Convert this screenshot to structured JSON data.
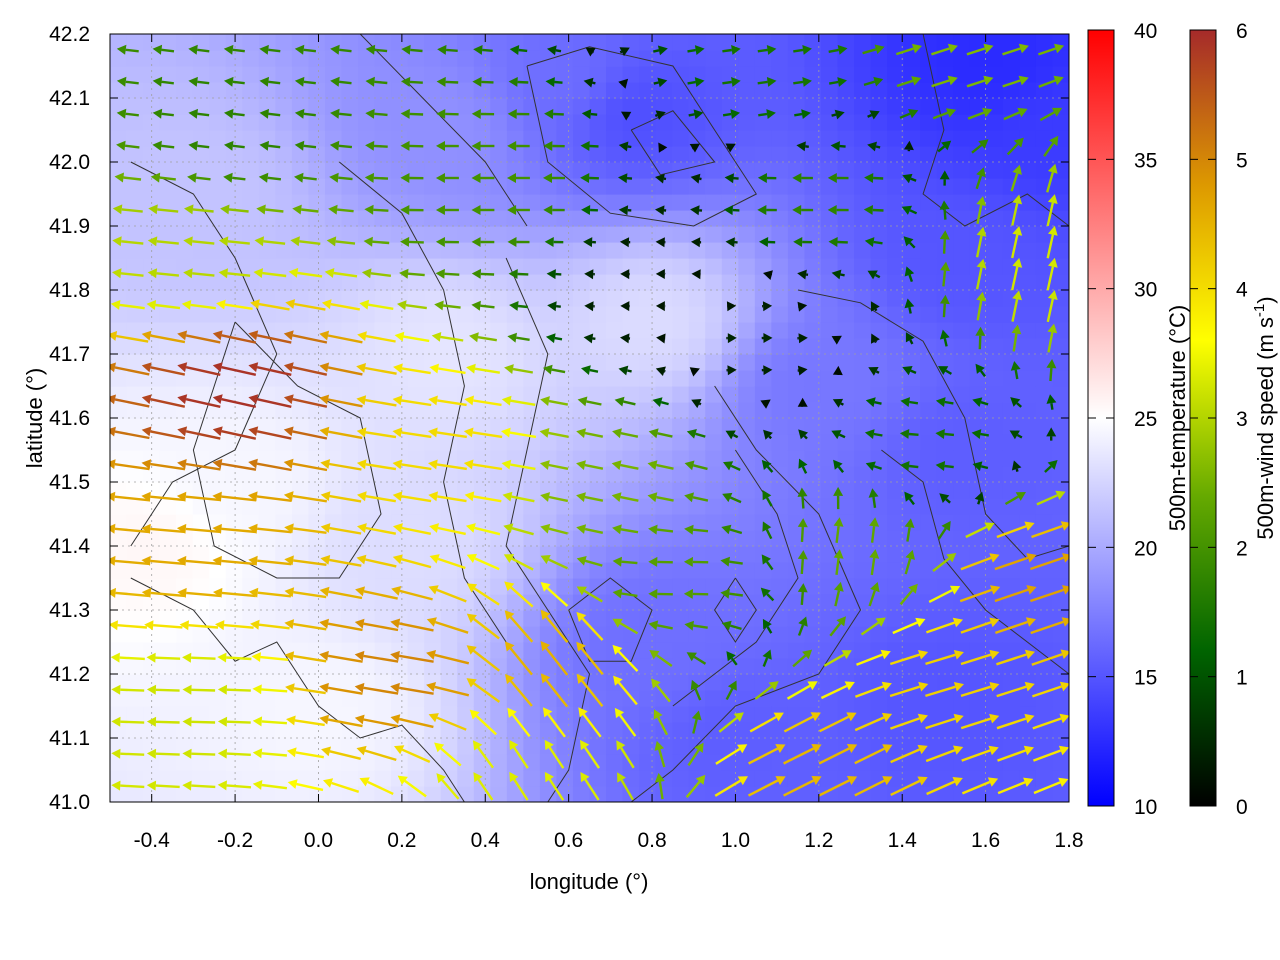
{
  "chart_data": {
    "type": "heatmap",
    "title": "",
    "xlabel": "longitude (°)",
    "ylabel": "latitude (°)",
    "xlim": [
      -0.5,
      1.8
    ],
    "ylim": [
      41.0,
      42.2
    ],
    "x_ticks": [
      {
        "value": -0.4,
        "label": "-0.4"
      },
      {
        "value": -0.2,
        "label": "-0.2"
      },
      {
        "value": 0.0,
        "label": "0.0"
      },
      {
        "value": 0.2,
        "label": "0.2"
      },
      {
        "value": 0.4,
        "label": "0.4"
      },
      {
        "value": 0.6,
        "label": "0.6"
      },
      {
        "value": 0.8,
        "label": "0.8"
      },
      {
        "value": 1.0,
        "label": "1.0"
      },
      {
        "value": 1.2,
        "label": "1.2"
      },
      {
        "value": 1.4,
        "label": "1.4"
      },
      {
        "value": 1.6,
        "label": "1.6"
      },
      {
        "value": 1.8,
        "label": "1.8"
      }
    ],
    "y_ticks": [
      {
        "value": 41.0,
        "label": "41.0"
      },
      {
        "value": 41.1,
        "label": "41.1"
      },
      {
        "value": 41.2,
        "label": "41.2"
      },
      {
        "value": 41.3,
        "label": "41.3"
      },
      {
        "value": 41.4,
        "label": "41.4"
      },
      {
        "value": 41.5,
        "label": "41.5"
      },
      {
        "value": 41.6,
        "label": "41.6"
      },
      {
        "value": 41.7,
        "label": "41.7"
      },
      {
        "value": 41.8,
        "label": "41.8"
      },
      {
        "value": 41.9,
        "label": "41.9"
      },
      {
        "value": 42.0,
        "label": "42.0"
      },
      {
        "value": 42.1,
        "label": "42.1"
      },
      {
        "value": 42.2,
        "label": "42.2"
      }
    ],
    "grid": true,
    "temperature_colorbar": {
      "label": "500m-temperature (°C)",
      "range": [
        10,
        40
      ],
      "ticks": [
        {
          "value": 10,
          "label": "10"
        },
        {
          "value": 15,
          "label": "15"
        },
        {
          "value": 20,
          "label": "20"
        },
        {
          "value": 25,
          "label": "25"
        },
        {
          "value": 30,
          "label": "30"
        },
        {
          "value": 35,
          "label": "35"
        },
        {
          "value": 40,
          "label": "40"
        }
      ],
      "colors": [
        "#0000ff",
        "#ffffff",
        "#ff0000"
      ]
    },
    "windspeed_colorbar": {
      "label": "500m-wind speed (m s",
      "label_superscript": "-1",
      "label_close": ")",
      "range": [
        0,
        6
      ],
      "ticks": [
        {
          "value": 0,
          "label": "0"
        },
        {
          "value": 1,
          "label": "1"
        },
        {
          "value": 2,
          "label": "2"
        },
        {
          "value": 3,
          "label": "3"
        },
        {
          "value": 4,
          "label": "4"
        },
        {
          "value": 5,
          "label": "5"
        },
        {
          "value": 6,
          "label": "6"
        }
      ],
      "colors": [
        "#000000",
        "#006400",
        "#66aa00",
        "#ffff00",
        "#dd9900",
        "#a52a2a"
      ]
    },
    "temperature_regions": [
      {
        "lon": 1.62,
        "lat": 42.15,
        "temp": 12.5
      },
      {
        "lon": 1.75,
        "lat": 42.05,
        "temp": 13.5
      },
      {
        "lon": 1.55,
        "lat": 41.85,
        "temp": 15.0
      },
      {
        "lon": 1.55,
        "lat": 41.55,
        "temp": 15.5
      },
      {
        "lon": 1.5,
        "lat": 41.15,
        "temp": 15.0
      },
      {
        "lon": 1.0,
        "lat": 41.1,
        "temp": 15.5
      },
      {
        "lon": 0.8,
        "lat": 41.25,
        "temp": 16.5
      },
      {
        "lon": 0.75,
        "lat": 42.08,
        "temp": 14.5
      },
      {
        "lon": 0.6,
        "lat": 42.12,
        "temp": 16.5
      },
      {
        "lon": 0.3,
        "lat": 42.05,
        "temp": 18.5
      },
      {
        "lon": 0.8,
        "lat": 41.75,
        "temp": 23.0
      },
      {
        "lon": 0.3,
        "lat": 41.7,
        "temp": 23.5
      },
      {
        "lon": -0.2,
        "lat": 41.5,
        "temp": 24.5
      },
      {
        "lon": -0.4,
        "lat": 41.4,
        "temp": 25.5
      },
      {
        "lon": 0.0,
        "lat": 41.15,
        "temp": 24.5
      },
      {
        "lon": -0.3,
        "lat": 41.95,
        "temp": 21.5
      },
      {
        "lon": 0.2,
        "lat": 41.4,
        "temp": 23.0
      },
      {
        "lon": 1.2,
        "lat": 41.65,
        "temp": 17.0
      }
    ],
    "wind_regions": [
      {
        "lon": -0.2,
        "lat": 42.05,
        "u": -1.7,
        "v": 0.2
      },
      {
        "lon": 0.4,
        "lat": 41.95,
        "u": -2.0,
        "v": 0.0
      },
      {
        "lon": 1.2,
        "lat": 41.95,
        "u": -1.8,
        "v": 0.0
      },
      {
        "lon": 1.1,
        "lat": 42.12,
        "u": 1.5,
        "v": 0.2
      },
      {
        "lon": 1.55,
        "lat": 42.17,
        "u": 2.5,
        "v": 0.8
      },
      {
        "lon": 1.75,
        "lat": 41.85,
        "u": 0.7,
        "v": 3.2
      },
      {
        "lon": 1.45,
        "lat": 41.55,
        "u": -1.5,
        "v": 0.1
      },
      {
        "lon": 1.05,
        "lat": 41.72,
        "u": 0.5,
        "v": 0.0
      },
      {
        "lon": 0.8,
        "lat": 41.8,
        "u": -0.3,
        "v": 0.0
      },
      {
        "lon": 0.7,
        "lat": 41.5,
        "u": -2.5,
        "v": 0.5
      },
      {
        "lon": 0.3,
        "lat": 41.55,
        "u": -4.0,
        "v": 0.6
      },
      {
        "lon": -0.2,
        "lat": 41.65,
        "u": -5.8,
        "v": 1.3
      },
      {
        "lon": -0.3,
        "lat": 41.85,
        "u": -3.0,
        "v": 0.3
      },
      {
        "lon": -0.3,
        "lat": 41.4,
        "u": -4.6,
        "v": 0.4
      },
      {
        "lon": -0.3,
        "lat": 41.15,
        "u": -3.2,
        "v": 0.1
      },
      {
        "lon": 0.2,
        "lat": 41.2,
        "u": -5.0,
        "v": 0.8
      },
      {
        "lon": 0.55,
        "lat": 41.22,
        "u": -2.8,
        "v": 3.6
      },
      {
        "lon": 0.5,
        "lat": 41.05,
        "u": -1.8,
        "v": 2.8
      },
      {
        "lon": 0.85,
        "lat": 41.35,
        "u": -2.2,
        "v": 0.0
      },
      {
        "lon": 1.5,
        "lat": 41.2,
        "u": 4.0,
        "v": 1.2
      },
      {
        "lon": 1.2,
        "lat": 41.05,
        "u": 4.0,
        "v": 2.0
      },
      {
        "lon": 1.7,
        "lat": 41.35,
        "u": 4.5,
        "v": 1.5
      },
      {
        "lon": 1.3,
        "lat": 41.4,
        "u": 0.3,
        "v": 2.4
      }
    ],
    "contours": [
      [
        [
          0.5,
          42.15
        ],
        [
          0.65,
          42.18
        ],
        [
          0.85,
          42.15
        ],
        [
          0.95,
          42.05
        ],
        [
          1.05,
          41.95
        ],
        [
          0.9,
          41.9
        ],
        [
          0.7,
          41.92
        ],
        [
          0.55,
          42.0
        ],
        [
          0.5,
          42.15
        ]
      ],
      [
        [
          0.75,
          42.05
        ],
        [
          0.85,
          42.08
        ],
        [
          0.95,
          42.0
        ],
        [
          0.82,
          41.98
        ],
        [
          0.75,
          42.05
        ]
      ],
      [
        [
          0.95,
          41.65
        ],
        [
          1.05,
          41.55
        ],
        [
          1.2,
          41.45
        ],
        [
          1.3,
          41.3
        ],
        [
          1.2,
          41.2
        ],
        [
          1.0,
          41.15
        ],
        [
          0.85,
          41.05
        ],
        [
          0.75,
          41.0
        ]
      ],
      [
        [
          1.0,
          41.55
        ],
        [
          1.1,
          41.45
        ],
        [
          1.15,
          41.35
        ],
        [
          1.05,
          41.25
        ],
        [
          0.95,
          41.2
        ],
        [
          0.85,
          41.15
        ]
      ],
      [
        [
          1.15,
          41.8
        ],
        [
          1.3,
          41.78
        ],
        [
          1.45,
          41.72
        ],
        [
          1.55,
          41.6
        ],
        [
          1.6,
          41.45
        ],
        [
          1.7,
          41.38
        ],
        [
          1.8,
          41.4
        ]
      ],
      [
        [
          1.35,
          41.55
        ],
        [
          1.45,
          41.5
        ],
        [
          1.5,
          41.38
        ],
        [
          1.6,
          41.3
        ],
        [
          1.8,
          41.2
        ]
      ],
      [
        [
          -0.45,
          42.0
        ],
        [
          -0.3,
          41.95
        ],
        [
          -0.2,
          41.85
        ],
        [
          -0.1,
          41.7
        ],
        [
          -0.2,
          41.55
        ],
        [
          -0.35,
          41.5
        ],
        [
          -0.45,
          41.4
        ]
      ],
      [
        [
          0.05,
          42.0
        ],
        [
          0.2,
          41.92
        ],
        [
          0.3,
          41.8
        ],
        [
          0.35,
          41.65
        ],
        [
          0.3,
          41.5
        ],
        [
          0.35,
          41.35
        ],
        [
          0.45,
          41.25
        ]
      ],
      [
        [
          0.45,
          41.85
        ],
        [
          0.55,
          41.7
        ],
        [
          0.5,
          41.55
        ],
        [
          0.45,
          41.4
        ],
        [
          0.55,
          41.3
        ],
        [
          0.65,
          41.2
        ],
        [
          0.6,
          41.05
        ],
        [
          0.55,
          41.0
        ]
      ],
      [
        [
          -0.45,
          41.35
        ],
        [
          -0.3,
          41.3
        ],
        [
          -0.2,
          41.22
        ],
        [
          -0.1,
          41.25
        ],
        [
          0.0,
          41.15
        ],
        [
          0.1,
          41.1
        ],
        [
          0.2,
          41.12
        ],
        [
          0.3,
          41.05
        ],
        [
          0.35,
          41.0
        ]
      ],
      [
        [
          -0.2,
          41.75
        ],
        [
          -0.05,
          41.65
        ],
        [
          0.1,
          41.6
        ],
        [
          0.15,
          41.45
        ],
        [
          0.05,
          41.35
        ],
        [
          -0.1,
          41.35
        ],
        [
          -0.25,
          41.4
        ],
        [
          -0.3,
          41.55
        ],
        [
          -0.2,
          41.75
        ]
      ],
      [
        [
          1.45,
          42.2
        ],
        [
          1.5,
          42.05
        ],
        [
          1.45,
          41.95
        ],
        [
          1.55,
          41.9
        ],
        [
          1.7,
          41.95
        ],
        [
          1.8,
          41.9
        ]
      ],
      [
        [
          0.1,
          42.2
        ],
        [
          0.25,
          42.1
        ],
        [
          0.4,
          42.0
        ],
        [
          0.5,
          41.9
        ]
      ],
      [
        [
          1.0,
          41.35
        ],
        [
          1.05,
          41.3
        ],
        [
          1.0,
          41.25
        ],
        [
          0.95,
          41.3
        ],
        [
          1.0,
          41.35
        ]
      ],
      [
        [
          0.6,
          41.3
        ],
        [
          0.7,
          41.35
        ],
        [
          0.8,
          41.3
        ],
        [
          0.75,
          41.22
        ],
        [
          0.65,
          41.22
        ],
        [
          0.6,
          41.3
        ]
      ]
    ]
  }
}
